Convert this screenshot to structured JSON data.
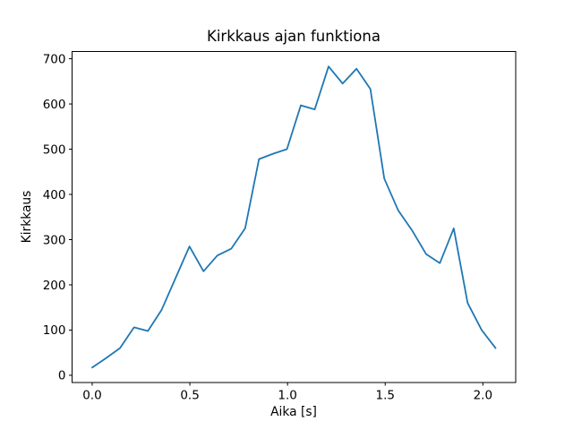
{
  "window": {
    "background": "#ffffff"
  },
  "chart_data": {
    "type": "line",
    "title": "Kirkkaus ajan funktiona",
    "xlabel": "Aika [s]",
    "ylabel": "Kirkkaus",
    "grid": false,
    "legend": "none",
    "line_color": "#1f77b4",
    "axes_color": "#000000",
    "xlim": [
      -0.103,
      2.168
    ],
    "ylim": [
      -16,
      716
    ],
    "xticks": [
      0.0,
      0.5,
      1.0,
      1.5,
      2.0
    ],
    "xtick_labels": [
      "0.0",
      "0.5",
      "1.0",
      "1.5",
      "2.0"
    ],
    "yticks": [
      0,
      100,
      200,
      300,
      400,
      500,
      600,
      700
    ],
    "ytick_labels": [
      "0",
      "100",
      "200",
      "300",
      "400",
      "500",
      "600",
      "700"
    ],
    "series": [
      {
        "name": "kirkkaus",
        "color": "#1f77b4",
        "x": [
          0.0,
          0.071,
          0.142,
          0.214,
          0.285,
          0.356,
          0.427,
          0.498,
          0.57,
          0.641,
          0.712,
          0.783,
          0.854,
          0.926,
          0.997,
          1.068,
          1.139,
          1.21,
          1.282,
          1.353,
          1.424,
          1.495,
          1.566,
          1.638,
          1.709,
          1.78,
          1.851,
          1.922,
          1.994,
          2.065
        ],
        "y": [
          17,
          38,
          60,
          106,
          98,
          145,
          215,
          285,
          230,
          265,
          280,
          325,
          478,
          490,
          500,
          597,
          588,
          683,
          645,
          678,
          633,
          435,
          365,
          320,
          268,
          248,
          325,
          160,
          100,
          60
        ]
      }
    ]
  }
}
